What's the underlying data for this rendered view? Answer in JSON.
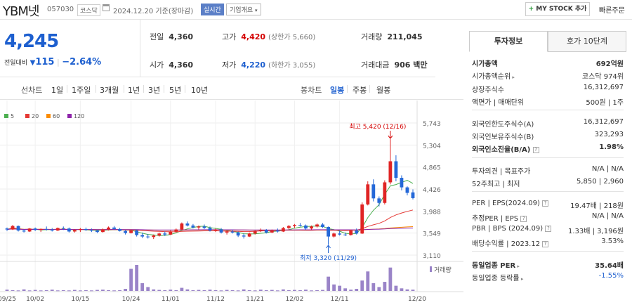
{
  "header": {
    "name": "YBM넷",
    "code": "057030",
    "market": "코스닥",
    "date": "2024.12.20 기준(장마감)",
    "live_label": "실시간",
    "corp_label": "기업개요",
    "mystock_label": "MY STOCK 추가",
    "quick_label": "빠른주문"
  },
  "price": {
    "current": "4,245",
    "change_label": "전일대비",
    "change": "115",
    "change_pct": "−2.64%"
  },
  "stats": {
    "prev_close": {
      "label": "전일",
      "value": "4,360"
    },
    "open": {
      "label": "시가",
      "value": "4,360"
    },
    "high": {
      "label": "고가",
      "value": "4,420",
      "sub": "(상한가 5,660)"
    },
    "low": {
      "label": "저가",
      "value": "4,220",
      "sub": "(하한가 3,055)"
    },
    "volume": {
      "label": "거래량",
      "value": "211,045"
    },
    "amount": {
      "label": "거래대금",
      "value": "906 백만"
    }
  },
  "periods": {
    "line_label": "선차트",
    "line_items": [
      "1일",
      "1주일",
      "3개월",
      "1년",
      "3년",
      "5년",
      "10년"
    ],
    "candle_label": "봉차트",
    "candle_items": [
      "일봉",
      "주봉",
      "월봉"
    ],
    "candle_selected": 0
  },
  "chart_data": {
    "type": "candlestick",
    "legend": [
      {
        "name": "5",
        "color": "#4caf50"
      },
      {
        "name": "20",
        "color": "#e53935"
      },
      {
        "name": "60",
        "color": "#fb8c00"
      },
      {
        "name": "120",
        "color": "#8e24aa"
      }
    ],
    "y_ticks": [
      "5,743",
      "5,304",
      "4,865",
      "4,426",
      "3,988",
      "3,549",
      "3,110"
    ],
    "y_range": [
      3110,
      5743
    ],
    "x_ticks": [
      "09/25",
      "10/02",
      "10/15",
      "10/24",
      "11/01",
      "11/12",
      "11/21",
      "12/02",
      "12/11",
      "12/20"
    ],
    "annotations": {
      "high": "최고 5,420 (12/16)",
      "low": "최저 3,320 (11/29)"
    },
    "volume_label": "거래량",
    "candles": [
      [
        3640,
        3660,
        3590,
        3620
      ],
      [
        3620,
        3710,
        3610,
        3690
      ],
      [
        3690,
        3700,
        3580,
        3600
      ],
      [
        3600,
        3620,
        3560,
        3580
      ],
      [
        3580,
        3650,
        3570,
        3640
      ],
      [
        3640,
        3660,
        3590,
        3610
      ],
      [
        3610,
        3640,
        3570,
        3630
      ],
      [
        3630,
        3680,
        3600,
        3620
      ],
      [
        3620,
        3650,
        3580,
        3600
      ],
      [
        3600,
        3660,
        3590,
        3650
      ],
      [
        3650,
        3680,
        3610,
        3640
      ],
      [
        3640,
        3660,
        3560,
        3580
      ],
      [
        3580,
        3630,
        3560,
        3610
      ],
      [
        3610,
        3650,
        3570,
        3630
      ],
      [
        3630,
        3660,
        3590,
        3610
      ],
      [
        3610,
        3640,
        3570,
        3600
      ],
      [
        3600,
        3620,
        3550,
        3570
      ],
      [
        3570,
        3640,
        3560,
        3620
      ],
      [
        3620,
        3680,
        3600,
        3660
      ],
      [
        3660,
        3690,
        3610,
        3630
      ],
      [
        3630,
        3650,
        3580,
        3590
      ],
      [
        3590,
        3610,
        3520,
        3550
      ],
      [
        3550,
        3620,
        3540,
        3600
      ],
      [
        3600,
        3620,
        3480,
        3510
      ],
      [
        3510,
        3560,
        3450,
        3480
      ],
      [
        3480,
        3530,
        3440,
        3470
      ],
      [
        3470,
        3520,
        3430,
        3500
      ],
      [
        3500,
        3560,
        3480,
        3540
      ],
      [
        3540,
        3580,
        3490,
        3520
      ],
      [
        3520,
        3600,
        3510,
        3580
      ],
      [
        3580,
        3640,
        3560,
        3620
      ],
      [
        3620,
        3760,
        3610,
        3740
      ],
      [
        3740,
        3780,
        3680,
        3700
      ],
      [
        3700,
        3730,
        3640,
        3660
      ],
      [
        3660,
        3700,
        3620,
        3680
      ],
      [
        3680,
        3720,
        3630,
        3650
      ],
      [
        3650,
        3680,
        3580,
        3600
      ],
      [
        3600,
        3640,
        3570,
        3620
      ],
      [
        3620,
        3650,
        3540,
        3560
      ],
      [
        3560,
        3600,
        3520,
        3580
      ],
      [
        3580,
        3620,
        3540,
        3560
      ],
      [
        3560,
        3580,
        3470,
        3500
      ],
      [
        3500,
        3540,
        3440,
        3480
      ],
      [
        3480,
        3560,
        3470,
        3540
      ],
      [
        3540,
        3600,
        3520,
        3590
      ],
      [
        3590,
        3640,
        3570,
        3610
      ],
      [
        3610,
        3630,
        3540,
        3560
      ],
      [
        3560,
        3620,
        3550,
        3600
      ],
      [
        3600,
        3640,
        3560,
        3580
      ],
      [
        3580,
        3670,
        3570,
        3650
      ],
      [
        3650,
        3710,
        3620,
        3690
      ],
      [
        3690,
        3730,
        3650,
        3710
      ],
      [
        3710,
        3750,
        3680,
        3700
      ],
      [
        3700,
        3720,
        3610,
        3640
      ],
      [
        3640,
        3700,
        3620,
        3680
      ],
      [
        3680,
        3740,
        3660,
        3720
      ],
      [
        3720,
        3750,
        3650,
        3670
      ],
      [
        3670,
        3680,
        3320,
        3480
      ],
      [
        3480,
        3560,
        3460,
        3540
      ],
      [
        3540,
        3600,
        3500,
        3520
      ],
      [
        3520,
        3560,
        3490,
        3510
      ],
      [
        3510,
        3620,
        3500,
        3600
      ],
      [
        3600,
        3640,
        3520,
        3540
      ],
      [
        3540,
        4160,
        3530,
        4120
      ],
      [
        4120,
        4580,
        4100,
        4520
      ],
      [
        4520,
        4620,
        4180,
        4240
      ],
      [
        4240,
        4280,
        4080,
        4150
      ],
      [
        4150,
        4600,
        4120,
        4560
      ],
      [
        4560,
        5420,
        4520,
        4980
      ],
      [
        4980,
        5100,
        4580,
        4650
      ],
      [
        4650,
        4700,
        4400,
        4460
      ],
      [
        4460,
        4480,
        4300,
        4350
      ],
      [
        4360,
        4420,
        4220,
        4245
      ]
    ],
    "volume": [
      0.05,
      0.03,
      0.02,
      0.06,
      0.02,
      0.04,
      0.02,
      0.03,
      0.05,
      0.02,
      0.03,
      0.02,
      0.04,
      0.02,
      0.03,
      0.02,
      0.04,
      0.05,
      0.03,
      0.02,
      0.03,
      0.08,
      0.85,
      1.0,
      0.3,
      0.15,
      0.06,
      0.04,
      0.03,
      0.05,
      0.03,
      0.12,
      0.06,
      0.03,
      0.04,
      0.03,
      0.05,
      0.03,
      0.02,
      0.04,
      0.03,
      0.02,
      0.06,
      0.03,
      0.02,
      0.05,
      0.03,
      0.04,
      0.02,
      0.06,
      0.03,
      0.04,
      0.03,
      0.05,
      0.02,
      0.03,
      0.04,
      0.55,
      0.25,
      0.2,
      0.1,
      0.05,
      0.08,
      0.4,
      0.75,
      0.3,
      0.15,
      0.35,
      0.9,
      0.2,
      0.1,
      0.06,
      0.05
    ]
  },
  "side": {
    "tabs": [
      "투자정보",
      "호가 10단계"
    ],
    "rows": [
      {
        "k": "시가총액",
        "v": "692억원",
        "bold": true
      },
      {
        "k": "시가총액순위",
        "v": "코스닥 974위",
        "arrow": true
      },
      {
        "k": "상장주식수",
        "v": "16,312,697"
      },
      {
        "k": "액면가 | 매매단위",
        "v": "500원 | 1주"
      },
      {
        "k": "외국인한도주식수(A)",
        "v": "16,312,697"
      },
      {
        "k": "외국인보유주식수(B)",
        "v": "323,293"
      },
      {
        "k": "외국인소진율(B/A)",
        "v": "1.98%",
        "bold": true,
        "q": true
      },
      {
        "k": "투자의견 | 목표주가",
        "v": "N/A | N/A"
      },
      {
        "k": "52주최고 | 최저",
        "v": "5,850 | 2,960"
      },
      {
        "k": "PER | EPS(2024.09)",
        "v": "19.47배 | 218원",
        "q": true
      },
      {
        "k": "추정PER | EPS",
        "v": "N/A | N/A",
        "q": true
      },
      {
        "k": "PBR | BPS (2024.09)",
        "v": "1.33배 | 3,196원",
        "q": true
      },
      {
        "k": "배당수익률 | 2023.12",
        "v": "3.53%",
        "q": true
      },
      {
        "k": "동일업종 PER",
        "v": "35.64배",
        "bold": true,
        "arrow": true
      },
      {
        "k": "동일업종 등락률",
        "v": "-1.55%",
        "blue": true,
        "arrow": true
      }
    ]
  }
}
